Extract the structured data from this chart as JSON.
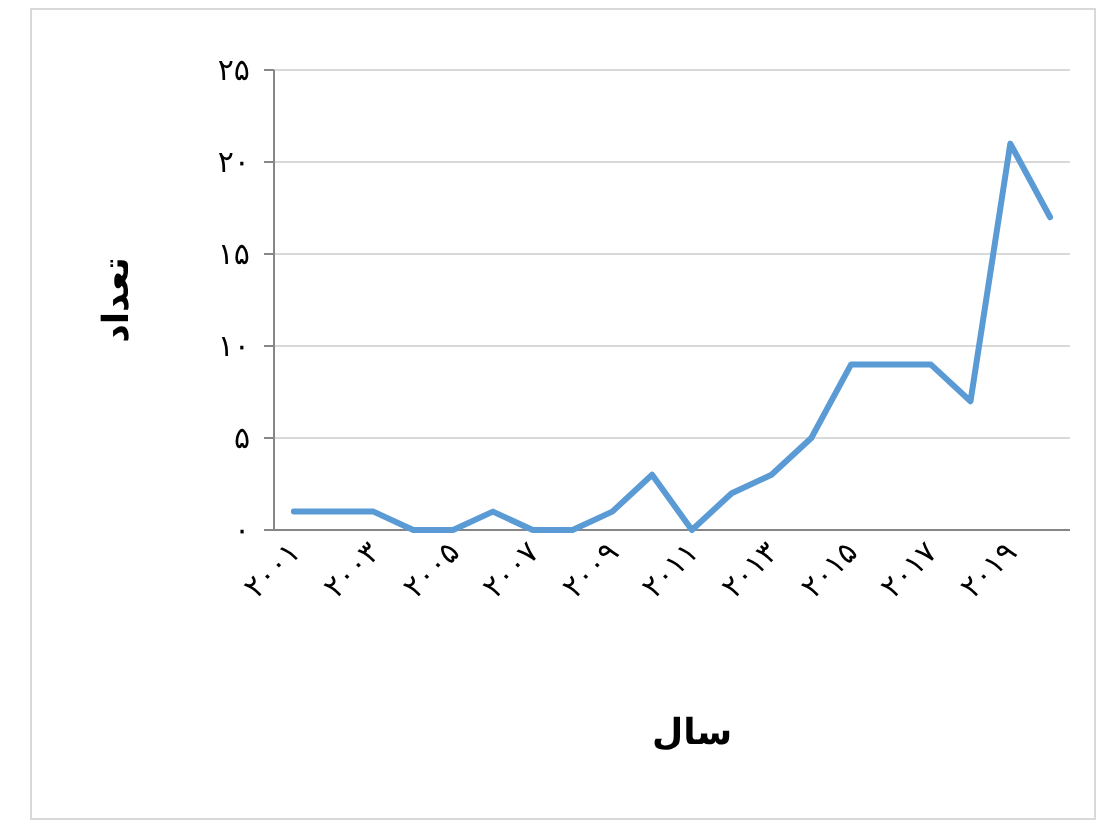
{
  "chart_data": {
    "type": "line",
    "xlabel": "سال",
    "ylabel": "تعداد",
    "categories": [
      "۲۰۰۱",
      null,
      "۲۰۰۳",
      null,
      "۲۰۰۵",
      null,
      "۲۰۰۷",
      null,
      "۲۰۰۹",
      null,
      "۲۰۱۱",
      null,
      "۲۰۱۳",
      null,
      "۲۰۱۵",
      null,
      "۲۰۱۷",
      null,
      "۲۰۱۹",
      null
    ],
    "series": [
      {
        "color": "#5b9bd5",
        "values": [
          1,
          1,
          1,
          0,
          0,
          1,
          0,
          0,
          1,
          3,
          0,
          2,
          3,
          5,
          9,
          9,
          9,
          7,
          21,
          17
        ]
      }
    ],
    "ylim": [
      0,
      25
    ],
    "yticks": [
      {
        "value": 0,
        "label": "۰"
      },
      {
        "value": 5,
        "label": "۵"
      },
      {
        "value": 10,
        "label": "۱۰"
      },
      {
        "value": 15,
        "label": "۱۵"
      },
      {
        "value": 20,
        "label": "۲۰"
      },
      {
        "value": 25,
        "label": "۲۵"
      }
    ],
    "grid": "y"
  }
}
